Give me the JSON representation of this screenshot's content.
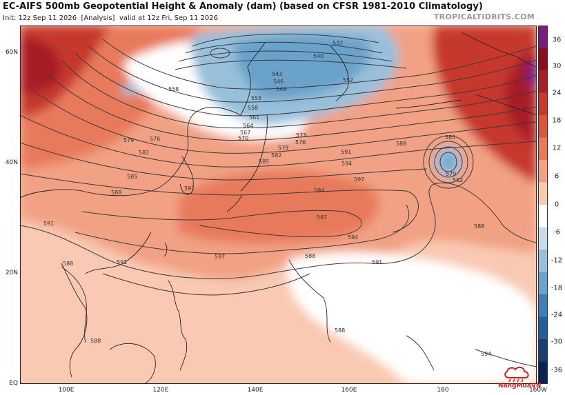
{
  "header": {
    "title": "EC-AIFS 500mb Geopotential Height & Anomaly (dam) (based on CFSR 1981-2010 Climatology)",
    "init": "Init: 12z Sep 11 2026",
    "analysis": "[Analysis]",
    "valid": "valid at 12z Fri, Sep 11 2026",
    "source": "TROPICALTIDBITS.COM"
  },
  "axes": {
    "lat_labels": [
      "60N",
      "40N",
      "20N",
      "EQ"
    ],
    "lon_labels": [
      "100E",
      "120E",
      "140E",
      "160E",
      "180",
      "160W"
    ]
  },
  "colorbar": {
    "labels": [
      "36",
      "30",
      "24",
      "18",
      "12",
      "6",
      "0",
      "-6",
      "-12",
      "-18",
      "-24",
      "-30",
      "-36"
    ],
    "colors": [
      "#7b1d7e",
      "#8b0d1e",
      "#a81f26",
      "#c6392f",
      "#d9573f",
      "#e87a5b",
      "#f2a184",
      "#f9c9b3",
      "#ffffff",
      "#c8dcea",
      "#98c0db",
      "#6aa2cb",
      "#3f7fb8",
      "#245f9a",
      "#163f73",
      "#0c2550"
    ]
  },
  "contour_labels": [
    "537",
    "540",
    "543",
    "546",
    "549",
    "552",
    "555",
    "558",
    "561",
    "564",
    "567",
    "570",
    "573",
    "576",
    "579",
    "582",
    "585",
    "588",
    "591",
    "594",
    "597",
    "558",
    "576",
    "579",
    "582",
    "585",
    "588",
    "591",
    "591",
    "591",
    "594",
    "597",
    "594",
    "591",
    "588",
    "588",
    "588",
    "588",
    "594",
    "597",
    "585",
    "579",
    "582",
    "588"
  ],
  "logo": {
    "text": "NangMuaVN"
  }
}
